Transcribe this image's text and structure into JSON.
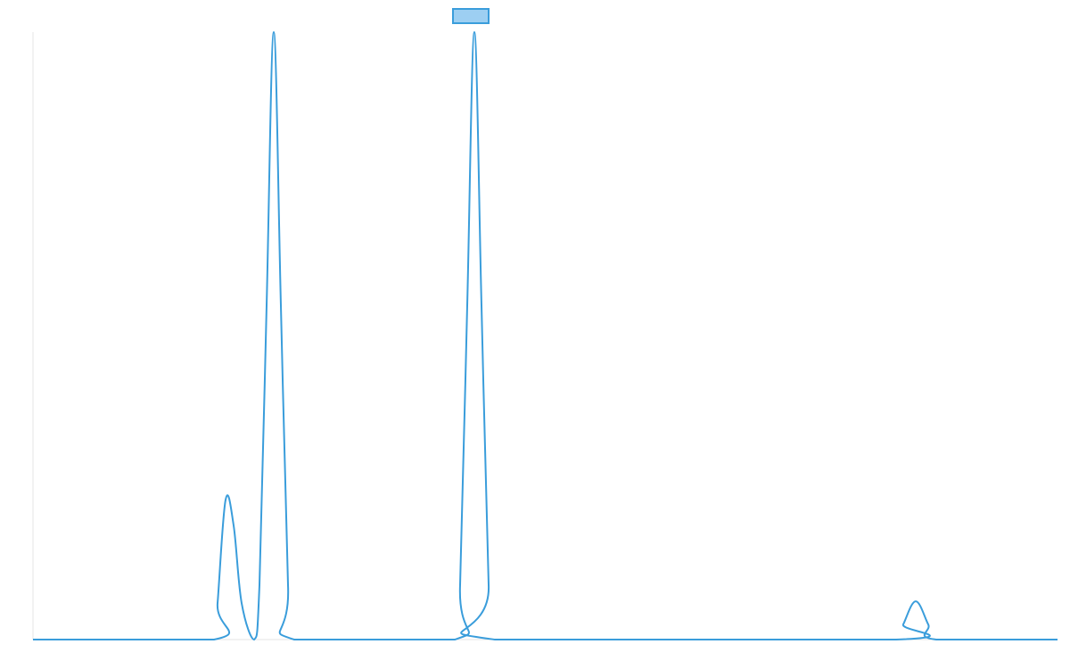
{
  "chart_data": {
    "type": "line",
    "title": "",
    "xlabel": "",
    "ylabel": "",
    "grid": false,
    "legend": {
      "placement": "top-center",
      "entries": [
        ""
      ]
    },
    "xlim": [
      0,
      1149
    ],
    "ylim": [
      0,
      1
    ],
    "series": [
      {
        "name": "",
        "color": "#3a9ddb",
        "fill_color": "#9dcff2",
        "points": [
          [
            0,
            0
          ],
          [
            203,
            0
          ],
          [
            207,
            0.06
          ],
          [
            216,
            0.23
          ],
          [
            225,
            0.188
          ],
          [
            234,
            0.06
          ],
          [
            248,
            0
          ],
          [
            254,
            0.09
          ],
          [
            262,
            0.55
          ],
          [
            270,
            1.0
          ],
          [
            278,
            0.55
          ],
          [
            286,
            0.09
          ],
          [
            293,
            0
          ],
          [
            473,
            0
          ],
          [
            479,
            0.09
          ],
          [
            487,
            0.55
          ],
          [
            495,
            1.0
          ],
          [
            503,
            0.55
          ],
          [
            511,
            0.09
          ],
          [
            518,
            0
          ],
          [
            968,
            0
          ],
          [
            976,
            0.025
          ],
          [
            990,
            0.063
          ],
          [
            1004,
            0.025
          ],
          [
            1013,
            0
          ],
          [
            1149,
            0
          ]
        ]
      }
    ]
  }
}
